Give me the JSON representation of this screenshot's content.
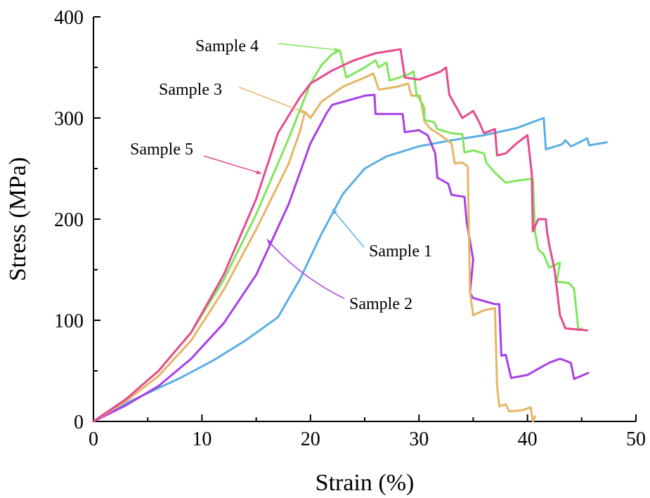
{
  "chart_data": {
    "type": "line",
    "title": "",
    "xlabel": "Strain (%)",
    "ylabel": "Stress (MPa)",
    "xlim": [
      0,
      50
    ],
    "ylim": [
      0,
      400
    ],
    "xticks": [
      0,
      10,
      20,
      30,
      40,
      50
    ],
    "yticks": [
      0,
      100,
      200,
      300,
      400
    ],
    "xtick_labels": [
      "0",
      "10",
      "20",
      "30",
      "40",
      "50"
    ],
    "ytick_labels": [
      "0",
      "100",
      "200",
      "300",
      "400"
    ],
    "grid": false,
    "legend": "none (inline annotations with arrows)",
    "series": [
      {
        "name": "Sample 1",
        "color": "#5aaee6",
        "points": [
          [
            0,
            0
          ],
          [
            2,
            13
          ],
          [
            5,
            28
          ],
          [
            8,
            43
          ],
          [
            11,
            60
          ],
          [
            14,
            80
          ],
          [
            17,
            103
          ],
          [
            19,
            140
          ],
          [
            21,
            185
          ],
          [
            23,
            225
          ],
          [
            25,
            250
          ],
          [
            27,
            262
          ],
          [
            30,
            272
          ],
          [
            33,
            278
          ],
          [
            36,
            283
          ],
          [
            39,
            290
          ],
          [
            41.5,
            300
          ],
          [
            41.7,
            269
          ],
          [
            43.2,
            274
          ],
          [
            43.5,
            278
          ],
          [
            44,
            272
          ],
          [
            45,
            277
          ],
          [
            45.5,
            280
          ],
          [
            45.7,
            273
          ],
          [
            47.3,
            276
          ]
        ]
      },
      {
        "name": "Sample 2",
        "color": "#a93fe6",
        "points": [
          [
            0,
            0
          ],
          [
            3,
            16
          ],
          [
            6,
            35
          ],
          [
            9,
            62
          ],
          [
            12,
            97
          ],
          [
            15,
            145
          ],
          [
            18,
            215
          ],
          [
            20,
            275
          ],
          [
            21.5,
            305
          ],
          [
            22,
            313
          ],
          [
            25,
            322
          ],
          [
            25.9,
            323
          ],
          [
            26,
            304
          ],
          [
            28.5,
            304
          ],
          [
            28.7,
            286
          ],
          [
            30,
            288
          ],
          [
            30.8,
            283
          ],
          [
            31.5,
            265
          ],
          [
            31.7,
            241
          ],
          [
            32.7,
            235
          ],
          [
            33,
            224
          ],
          [
            34.2,
            222
          ],
          [
            34.4,
            197
          ],
          [
            35,
            160
          ],
          [
            34.7,
            127
          ],
          [
            35,
            122
          ],
          [
            37,
            116
          ],
          [
            37.4,
            116
          ],
          [
            37.6,
            65
          ],
          [
            38,
            66
          ],
          [
            38.5,
            43
          ],
          [
            40,
            46
          ],
          [
            41,
            52
          ],
          [
            42,
            58
          ],
          [
            43,
            62
          ],
          [
            44,
            58
          ],
          [
            44.3,
            42
          ],
          [
            45.6,
            48
          ]
        ]
      },
      {
        "name": "Sample 3",
        "color": "#e6b565",
        "points": [
          [
            0,
            0
          ],
          [
            3,
            20
          ],
          [
            6,
            45
          ],
          [
            9,
            80
          ],
          [
            12,
            130
          ],
          [
            15,
            190
          ],
          [
            18,
            255
          ],
          [
            19,
            286
          ],
          [
            19.5,
            306
          ],
          [
            20,
            300
          ],
          [
            21,
            316
          ],
          [
            23,
            331
          ],
          [
            25,
            340
          ],
          [
            25.8,
            344
          ],
          [
            26.3,
            328
          ],
          [
            28,
            331
          ],
          [
            29,
            334
          ],
          [
            29.3,
            322
          ],
          [
            30.1,
            322
          ],
          [
            30.5,
            297
          ],
          [
            31,
            290
          ],
          [
            32,
            283
          ],
          [
            33,
            275
          ],
          [
            33.3,
            255
          ],
          [
            34,
            256
          ],
          [
            34.5,
            252
          ],
          [
            34.7,
            128
          ],
          [
            35,
            105
          ],
          [
            36,
            110
          ],
          [
            37,
            112
          ],
          [
            37.2,
            35
          ],
          [
            37.4,
            15
          ],
          [
            38,
            17
          ],
          [
            38.3,
            10
          ],
          [
            39.5,
            11
          ],
          [
            40.3,
            14
          ],
          [
            40.5,
            0
          ],
          [
            40.7,
            5
          ]
        ]
      },
      {
        "name": "Sample 4",
        "color": "#7fe65c",
        "points": [
          [
            0,
            0
          ],
          [
            3,
            22
          ],
          [
            6,
            50
          ],
          [
            9,
            88
          ],
          [
            12,
            140
          ],
          [
            15,
            205
          ],
          [
            18,
            280
          ],
          [
            20,
            334
          ],
          [
            21,
            352
          ],
          [
            22,
            363
          ],
          [
            22.7,
            367
          ],
          [
            23.3,
            340
          ],
          [
            25,
            350
          ],
          [
            26,
            357
          ],
          [
            26.3,
            350
          ],
          [
            27,
            355
          ],
          [
            27.3,
            337
          ],
          [
            29,
            343
          ],
          [
            29.5,
            346
          ],
          [
            29.8,
            322
          ],
          [
            30,
            320
          ],
          [
            30.5,
            310
          ],
          [
            30.5,
            298
          ],
          [
            31.4,
            296
          ],
          [
            31.7,
            289
          ],
          [
            33,
            285
          ],
          [
            34,
            284
          ],
          [
            34.2,
            266
          ],
          [
            35,
            268
          ],
          [
            36,
            265
          ],
          [
            36.2,
            256
          ],
          [
            37,
            246
          ],
          [
            38,
            236
          ],
          [
            39,
            238
          ],
          [
            40.5,
            240
          ],
          [
            40.7,
            187
          ],
          [
            41,
            170
          ],
          [
            41.5,
            165
          ],
          [
            42,
            152
          ],
          [
            43,
            157
          ],
          [
            42.7,
            138
          ],
          [
            43.8,
            137
          ],
          [
            44.3,
            131
          ],
          [
            44.7,
            90
          ],
          [
            45,
            92
          ]
        ]
      },
      {
        "name": "Sample 5",
        "color": "#e64a8c",
        "points": [
          [
            0,
            0
          ],
          [
            3,
            22
          ],
          [
            6,
            50
          ],
          [
            9,
            88
          ],
          [
            12,
            145
          ],
          [
            15,
            220
          ],
          [
            17,
            285
          ],
          [
            19,
            320
          ],
          [
            20,
            334
          ],
          [
            22,
            347
          ],
          [
            24,
            357
          ],
          [
            26,
            364
          ],
          [
            28.3,
            368
          ],
          [
            28.7,
            340
          ],
          [
            30,
            338
          ],
          [
            31,
            342
          ],
          [
            32,
            346
          ],
          [
            32.5,
            350
          ],
          [
            32.8,
            323
          ],
          [
            34,
            300
          ],
          [
            35,
            307
          ],
          [
            35.5,
            297
          ],
          [
            36,
            285
          ],
          [
            37,
            289
          ],
          [
            37.2,
            263
          ],
          [
            38,
            265
          ],
          [
            39,
            275
          ],
          [
            40,
            283
          ],
          [
            40.4,
            245
          ],
          [
            40.5,
            188
          ],
          [
            41,
            200
          ],
          [
            41.7,
            200
          ],
          [
            41.8,
            188
          ],
          [
            42,
            175
          ],
          [
            42.5,
            150
          ],
          [
            43,
            105
          ],
          [
            43.5,
            92
          ],
          [
            45.5,
            90
          ]
        ]
      }
    ],
    "annotations": [
      {
        "text": "Sample 4",
        "series": "Sample 4",
        "arrow_to": [
          22.7,
          367
        ]
      },
      {
        "text": "Sample 3",
        "series": "Sample 3",
        "arrow_to": [
          19.6,
          305
        ]
      },
      {
        "text": "Sample 5",
        "series": "Sample 5",
        "arrow_to": [
          15.5,
          245
        ]
      },
      {
        "text": "Sample 1",
        "series": "Sample 1",
        "arrow_to": [
          22,
          210
        ]
      },
      {
        "text": "Sample 2",
        "series": "Sample 2",
        "arrow_to": [
          16,
          180
        ]
      }
    ]
  }
}
